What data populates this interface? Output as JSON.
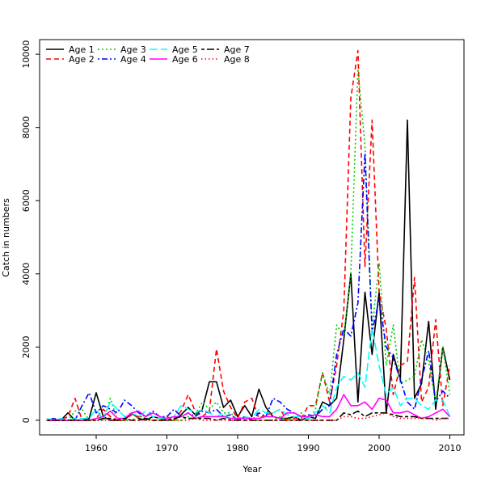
{
  "chart_data": {
    "type": "line",
    "title": "",
    "xlabel": "Year",
    "ylabel": "Catch in numbers",
    "xlim": [
      1952,
      2012
    ],
    "ylim": [
      -400,
      10400
    ],
    "xticks": [
      1960,
      1970,
      1980,
      1990,
      2000,
      2010
    ],
    "yticks": [
      0,
      2000,
      4000,
      6000,
      8000,
      10000
    ],
    "grid": false,
    "legend_position": "top-left",
    "x": [
      1953,
      1954,
      1955,
      1956,
      1957,
      1958,
      1959,
      1960,
      1961,
      1962,
      1963,
      1964,
      1965,
      1966,
      1967,
      1968,
      1969,
      1970,
      1971,
      1972,
      1973,
      1974,
      1975,
      1976,
      1977,
      1978,
      1979,
      1980,
      1981,
      1982,
      1983,
      1984,
      1985,
      1986,
      1987,
      1988,
      1989,
      1990,
      1991,
      1992,
      1993,
      1994,
      1995,
      1996,
      1997,
      1998,
      1999,
      2000,
      2001,
      2002,
      2003,
      2004,
      2005,
      2006,
      2007,
      2008,
      2009,
      2010
    ],
    "series": [
      {
        "name": "Age 1",
        "color": "#000000",
        "dash": "solid",
        "values": [
          0,
          0,
          0,
          200,
          0,
          0,
          50,
          750,
          100,
          0,
          0,
          0,
          200,
          50,
          0,
          100,
          50,
          0,
          0,
          150,
          350,
          150,
          300,
          1050,
          1050,
          350,
          550,
          100,
          400,
          100,
          850,
          350,
          100,
          50,
          50,
          100,
          0,
          100,
          50,
          500,
          400,
          600,
          2200,
          4000,
          500,
          3500,
          1800,
          3500,
          200,
          1800,
          1100,
          8200,
          600,
          1000,
          2700,
          300,
          2000,
          1100
        ]
      },
      {
        "name": "Age 2",
        "color": "#ff0000",
        "dash": "dashed",
        "values": [
          0,
          0,
          0,
          100,
          600,
          0,
          0,
          50,
          300,
          100,
          0,
          0,
          150,
          100,
          50,
          0,
          0,
          100,
          0,
          250,
          700,
          250,
          100,
          250,
          1950,
          800,
          350,
          50,
          500,
          600,
          50,
          150,
          200,
          300,
          0,
          50,
          50,
          400,
          400,
          1300,
          500,
          1500,
          3000,
          8800,
          10100,
          4200,
          8200,
          3500,
          2500,
          700,
          1500,
          1600,
          3900,
          500,
          900,
          2750,
          400,
          1500
        ]
      },
      {
        "name": "Age 3",
        "color": "#00cc00",
        "dash": "dotted",
        "values": [
          0,
          0,
          0,
          0,
          250,
          300,
          0,
          0,
          0,
          600,
          0,
          0,
          0,
          100,
          100,
          0,
          0,
          0,
          0,
          0,
          100,
          150,
          500,
          300,
          500,
          200,
          200,
          0,
          100,
          0,
          0,
          0,
          0,
          100,
          0,
          100,
          200,
          0,
          300,
          1300,
          700,
          2600,
          2300,
          4000,
          9600,
          7500,
          2500,
          4300,
          1500,
          2600,
          1000,
          1100,
          1200,
          2200,
          1600,
          500,
          2000,
          700
        ]
      },
      {
        "name": "Age 4",
        "color": "#0000ff",
        "dash": "dotdash",
        "values": [
          0,
          50,
          0,
          0,
          0,
          400,
          750,
          200,
          400,
          300,
          200,
          550,
          400,
          200,
          100,
          250,
          100,
          100,
          300,
          100,
          200,
          100,
          250,
          200,
          300,
          100,
          150,
          0,
          100,
          0,
          200,
          100,
          600,
          500,
          300,
          200,
          100,
          150,
          100,
          300,
          400,
          1800,
          2500,
          2300,
          3200,
          7300,
          2400,
          3300,
          2000,
          1700,
          1100,
          500,
          300,
          1100,
          1900,
          500,
          800,
          600
        ]
      },
      {
        "name": "Age 5",
        "color": "#00ffff",
        "dash": "longdash",
        "values": [
          50,
          0,
          50,
          0,
          50,
          50,
          50,
          300,
          0,
          500,
          300,
          100,
          200,
          100,
          250,
          100,
          50,
          50,
          100,
          400,
          300,
          200,
          300,
          200,
          100,
          200,
          0,
          50,
          100,
          50,
          300,
          200,
          200,
          300,
          150,
          100,
          100,
          50,
          200,
          400,
          200,
          900,
          1200,
          1100,
          1300,
          900,
          2500,
          1500,
          700,
          900,
          400,
          600,
          600,
          400,
          300,
          550,
          550,
          100
        ]
      },
      {
        "name": "Age 6",
        "color": "#ff00ff",
        "dash": "solid",
        "values": [
          0,
          0,
          0,
          0,
          0,
          0,
          0,
          50,
          100,
          250,
          50,
          50,
          200,
          250,
          100,
          200,
          100,
          50,
          100,
          100,
          200,
          50,
          100,
          100,
          100,
          100,
          50,
          50,
          50,
          50,
          50,
          100,
          100,
          50,
          200,
          200,
          100,
          100,
          150,
          100,
          100,
          300,
          700,
          400,
          400,
          500,
          300,
          600,
          550,
          200,
          200,
          250,
          150,
          50,
          100,
          200,
          300,
          100
        ]
      },
      {
        "name": "Age 7",
        "color": "#000000",
        "dash": "twodash",
        "values": [
          0,
          0,
          0,
          0,
          0,
          0,
          0,
          0,
          50,
          50,
          0,
          50,
          0,
          0,
          50,
          0,
          0,
          0,
          50,
          100,
          50,
          50,
          50,
          50,
          0,
          50,
          0,
          0,
          0,
          0,
          0,
          0,
          0,
          0,
          0,
          0,
          0,
          0,
          0,
          0,
          0,
          0,
          200,
          150,
          250,
          100,
          200,
          200,
          200,
          150,
          100,
          100,
          100,
          50,
          50,
          50,
          50,
          50
        ]
      },
      {
        "name": "Age 8",
        "color": "#ff0000",
        "dash": "tightdotted",
        "values": [
          0,
          0,
          0,
          0,
          0,
          0,
          0,
          0,
          0,
          0,
          0,
          0,
          0,
          0,
          0,
          0,
          0,
          0,
          0,
          0,
          0,
          50,
          0,
          0,
          0,
          0,
          0,
          0,
          0,
          0,
          0,
          0,
          0,
          0,
          0,
          0,
          0,
          0,
          0,
          0,
          0,
          0,
          100,
          100,
          50,
          50,
          100,
          150,
          200,
          100,
          50,
          50,
          50,
          50,
          50,
          0,
          50,
          50
        ]
      }
    ]
  }
}
